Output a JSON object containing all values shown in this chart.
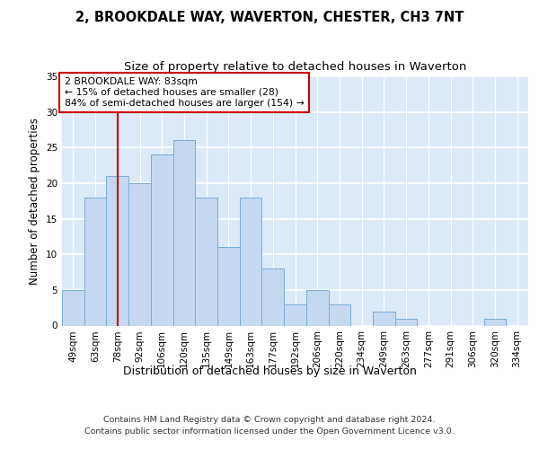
{
  "title": "2, BROOKDALE WAY, WAVERTON, CHESTER, CH3 7NT",
  "subtitle": "Size of property relative to detached houses in Waverton",
  "xlabel": "Distribution of detached houses by size in Waverton",
  "ylabel": "Number of detached properties",
  "categories": [
    "49sqm",
    "63sqm",
    "78sqm",
    "92sqm",
    "106sqm",
    "120sqm",
    "135sqm",
    "149sqm",
    "163sqm",
    "177sqm",
    "192sqm",
    "206sqm",
    "220sqm",
    "234sqm",
    "249sqm",
    "263sqm",
    "277sqm",
    "291sqm",
    "306sqm",
    "320sqm",
    "334sqm"
  ],
  "values": [
    5,
    18,
    21,
    20,
    24,
    26,
    18,
    11,
    18,
    8,
    3,
    5,
    3,
    0,
    2,
    1,
    0,
    0,
    0,
    1,
    0
  ],
  "bar_color": "#c5d8f0",
  "bar_edge_color": "#7aadd4",
  "background_color": "#dce9f7",
  "vline_x": 2,
  "vline_color": "#cc0000",
  "annotation_text": "2 BROOKDALE WAY: 83sqm\n← 15% of detached houses are smaller (28)\n84% of semi-detached houses are larger (154) →",
  "annotation_box_facecolor": "white",
  "annotation_box_edgecolor": "#cc0000",
  "ylim": [
    0,
    35
  ],
  "yticks": [
    0,
    5,
    10,
    15,
    20,
    25,
    30,
    35
  ],
  "footnote_line1": "Contains HM Land Registry data © Crown copyright and database right 2024.",
  "footnote_line2": "Contains public sector information licensed under the Open Government Licence v3.0.",
  "title_fontsize": 10.5,
  "subtitle_fontsize": 9.5,
  "xlabel_fontsize": 9,
  "ylabel_fontsize": 8.5,
  "tick_fontsize": 7.5,
  "annotation_fontsize": 7.8,
  "footnote_fontsize": 6.8
}
